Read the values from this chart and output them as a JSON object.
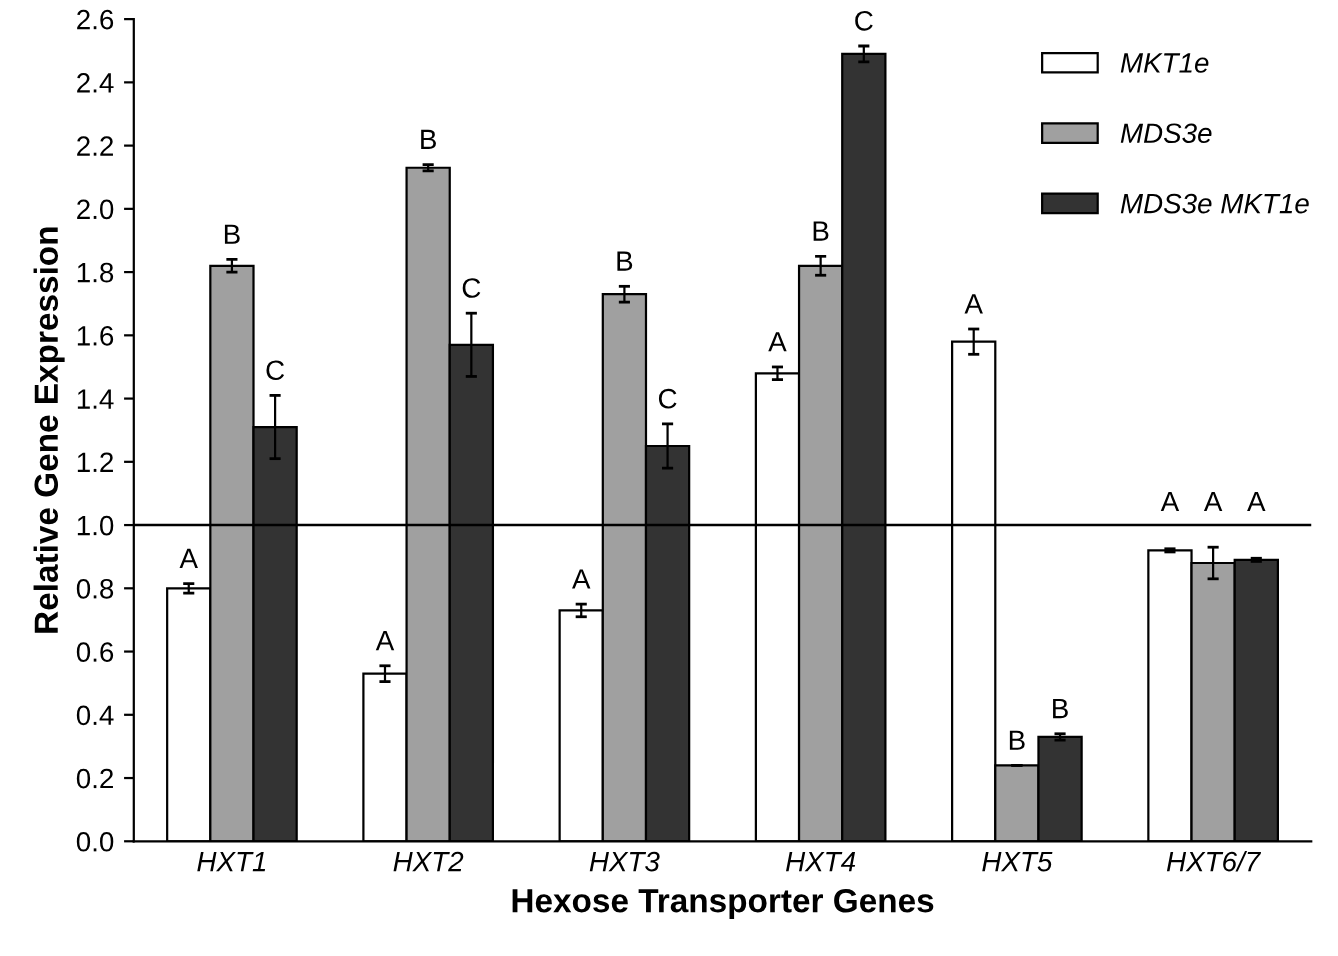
{
  "chart_data": {
    "type": "bar",
    "xlabel": "Hexose Transporter Genes",
    "ylabel": "Relative Gene Expression",
    "categories": [
      "HXT1",
      "HXT2",
      "HXT3",
      "HXT4",
      "HXT5",
      "HXT6/7"
    ],
    "series": [
      {
        "name": "MKT1e",
        "color": "#ffffff",
        "values": [
          0.8,
          0.53,
          0.73,
          1.48,
          1.58,
          0.92
        ],
        "errors": [
          0.015,
          0.025,
          0.02,
          0.02,
          0.04,
          0.005
        ],
        "value_labels": [
          "A",
          "A",
          "A",
          "A",
          "A",
          "A"
        ]
      },
      {
        "name": "MDS3e",
        "color": "#a0a0a0",
        "values": [
          1.82,
          2.13,
          1.73,
          1.82,
          0.24,
          0.88
        ],
        "errors": [
          0.02,
          0.01,
          0.025,
          0.03,
          null,
          0.05
        ],
        "value_labels": [
          "B",
          "B",
          "B",
          "B",
          "B",
          "A"
        ]
      },
      {
        "name": "MDS3e MKT1e",
        "color": "#333333",
        "values": [
          1.31,
          1.57,
          1.25,
          2.49,
          0.33,
          0.89
        ],
        "errors": [
          0.1,
          0.1,
          0.07,
          0.025,
          0.01,
          0.005
        ],
        "value_labels": [
          "C",
          "C",
          "C",
          "C",
          "B",
          "A"
        ]
      }
    ],
    "ylim": [
      0,
      2.6
    ],
    "yticks": [
      {
        "value": 0,
        "label": "0.0"
      },
      {
        "value": 0.2,
        "label": "0.2"
      },
      {
        "value": 0.4,
        "label": "0.4"
      },
      {
        "value": 0.6,
        "label": "0.6"
      },
      {
        "value": 0.8,
        "label": "0.8"
      },
      {
        "value": 1.0,
        "label": "1.0"
      },
      {
        "value": 1.2,
        "label": "1.2"
      },
      {
        "value": 1.4,
        "label": "1.4"
      },
      {
        "value": 1.6,
        "label": "1.6"
      },
      {
        "value": 1.8,
        "label": "1.8"
      },
      {
        "value": 2.0,
        "label": "2.0"
      },
      {
        "value": 2.2,
        "label": "2.2"
      },
      {
        "value": 2.4,
        "label": "2.4"
      },
      {
        "value": 2.6,
        "label": "2.6"
      }
    ],
    "ref_lines": [
      {
        "axis": "y",
        "value": 1.0,
        "color": "#000000"
      }
    ],
    "legend": "top right",
    "grid": false
  }
}
